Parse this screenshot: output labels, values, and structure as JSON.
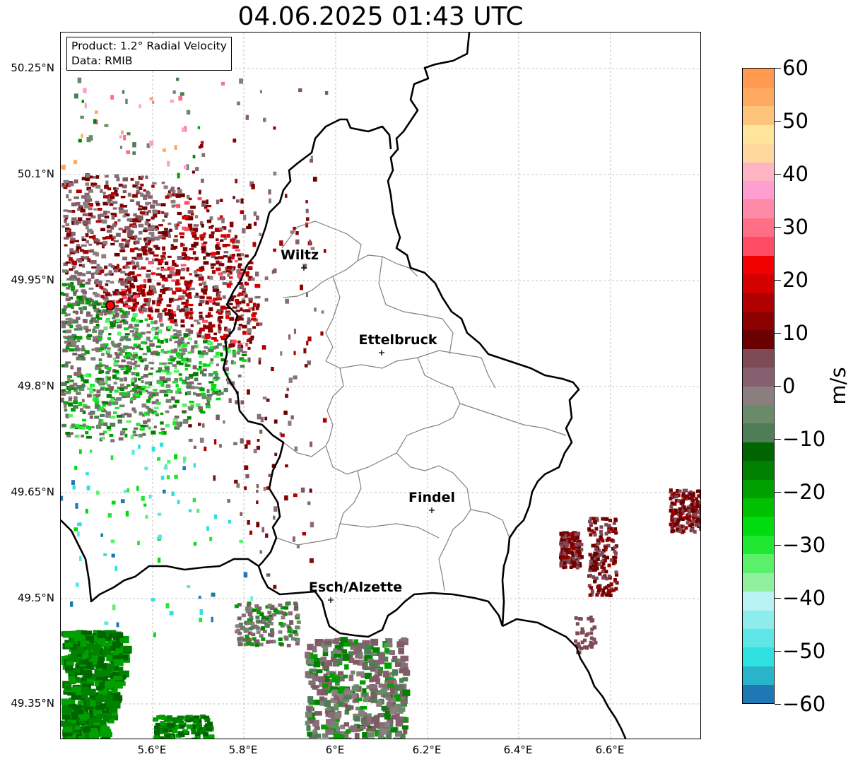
{
  "title": "04.06.2025 01:43 UTC",
  "info_box": {
    "line1": "Product: 1.2° Radial Velocity",
    "line2": "Data: RMIB"
  },
  "axes": {
    "lat_ticks": [
      "50.25°N",
      "50.1°N",
      "49.95°N",
      "49.8°N",
      "49.65°N",
      "49.5°N",
      "49.35°N"
    ],
    "lon_ticks": [
      "5.6°E",
      "5.8°E",
      "6°E",
      "6.2°E",
      "6.4°E",
      "6.6°E"
    ]
  },
  "cities": [
    {
      "name": "Wiltz"
    },
    {
      "name": "Ettelbruck"
    },
    {
      "name": "Findel"
    },
    {
      "name": "Esch/Alzette"
    }
  ],
  "colorbar": {
    "unit": "m/s",
    "min": -60,
    "max": 60,
    "tick_labels": [
      "60",
      "50",
      "40",
      "30",
      "20",
      "10",
      "0",
      "−10",
      "−20",
      "−30",
      "−40",
      "−50",
      "−60"
    ],
    "colors": [
      "#1f78b4",
      "#2ab4cc",
      "#2ee0e0",
      "#5ee6e6",
      "#8eecec",
      "#b8f2f2",
      "#90f0a0",
      "#5af06a",
      "#20e832",
      "#00dc10",
      "#00c000",
      "#00a000",
      "#008200",
      "#006400",
      "#4e7e55",
      "#6a8a6a",
      "#8a7e7e",
      "#876070",
      "#7e4a55",
      "#6a0000",
      "#8c0000",
      "#b00000",
      "#d40000",
      "#f00000",
      "#ff4c64",
      "#ff6e86",
      "#ff8aa8",
      "#ff9ed0",
      "#ffb4c4",
      "#ffd8a0",
      "#ffe49c",
      "#ffc47c",
      "#ffa860",
      "#ff9a50"
    ]
  },
  "color_legend": {
    "radar_site": "#ff0000",
    "border": "#000000",
    "canton": "#808080"
  }
}
